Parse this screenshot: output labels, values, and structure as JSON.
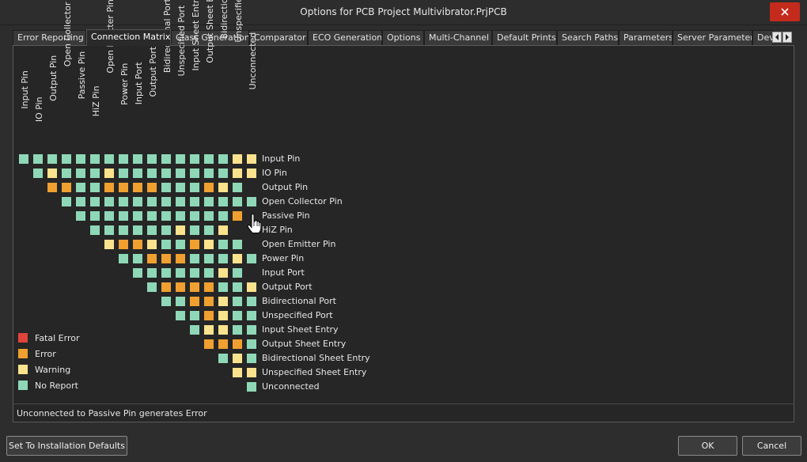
{
  "window": {
    "title": "Options for PCB Project Multivibrator.PrjPCB"
  },
  "tabs": [
    "Error Reporting",
    "Connection Matrix",
    "Class Generation",
    "Comparator",
    "ECO Generation",
    "Options",
    "Multi-Channel",
    "Default Prints",
    "Search Paths",
    "Parameters",
    "Server Parameters",
    "Dev"
  ],
  "active_tab": "Connection Matrix",
  "matrix": {
    "column_labels": [
      "Input Pin",
      "IO Pin",
      "Output Pin",
      "Open Collector Pin",
      "Passive Pin",
      "HiZ Pin",
      "Open Emitter Pin",
      "Power Pin",
      "Input Port",
      "Output Port",
      "Bidirectional Port",
      "Unspecified Port",
      "Input Sheet Entry",
      "Output Sheet Entry",
      "Bidirectional Sheet Entry",
      "Unspecified Sheet Entry",
      "Unconnected"
    ],
    "row_labels": [
      "Input Pin",
      "IO Pin",
      "Output Pin",
      "Open Collector Pin",
      "Passive Pin",
      "HiZ Pin",
      "Open Emitter Pin",
      "Power Pin",
      "Input Port",
      "Output Port",
      "Bidirectional Port",
      "Unspecified Port",
      "Input Sheet Entry",
      "Output Sheet Entry",
      "Bidirectional Sheet Entry",
      "Unspecified Sheet Entry",
      "Unconnected"
    ],
    "cells": [
      "NNNNNNNNNNNNNNNWW",
      "NWNNNWNNNNNNNNWW",
      "EENNEEEENNNEWN",
      "NNNNNNNNNNNNNN",
      "NNNNNNNNNNNE",
      "NNNNNNWNNW",
      "WEEWNNEWNN",
      "NNEEENNNWN",
      "NNNNNNWN",
      "NEEEENNW",
      "NNEEWNN",
      "NNEWNN",
      "NWWNN",
      "EEEN",
      "NWN",
      "WW",
      "N"
    ],
    "codes": {
      "F": "Fatal Error",
      "E": "Error",
      "W": "Warning",
      "N": "No Report"
    }
  },
  "legend": [
    {
      "label": "Fatal Error",
      "color": "#e0443a"
    },
    {
      "label": "Error",
      "color": "#f0a030"
    },
    {
      "label": "Warning",
      "color": "#fbe38e"
    },
    {
      "label": "No Report",
      "color": "#8ed8b8"
    }
  ],
  "status_text": "Unconnected to Passive Pin generates Error",
  "buttons": {
    "defaults": "Set To Installation Defaults",
    "ok": "OK",
    "cancel": "Cancel"
  }
}
